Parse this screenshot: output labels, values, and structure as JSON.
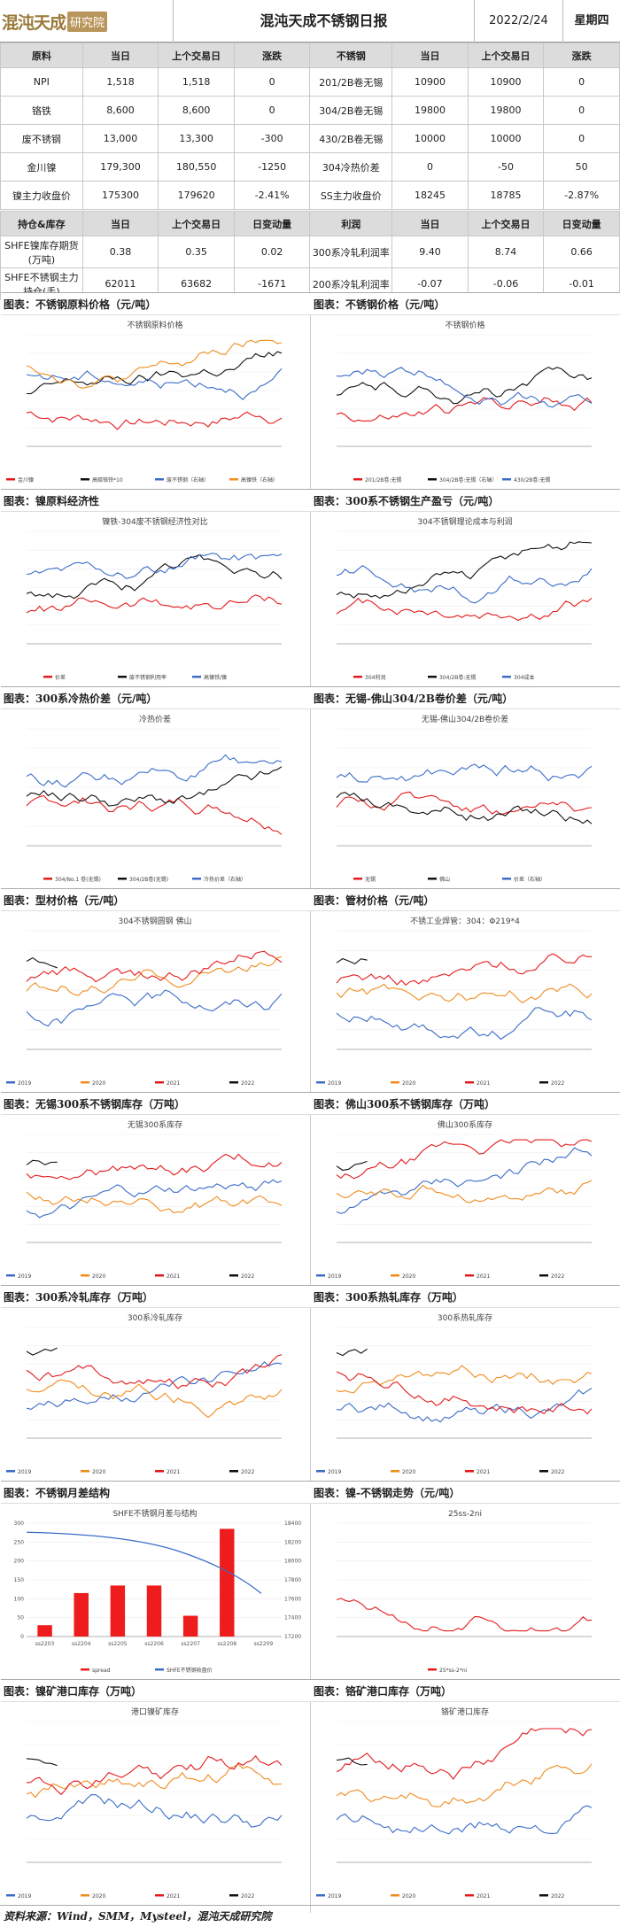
{
  "header": {
    "logo_main": "混沌天成",
    "logo_box": "研究院",
    "title": "混沌天成不锈钢日报",
    "date": "2022/2/24",
    "weekday": "星期四"
  },
  "table1": {
    "headers": [
      "原料",
      "当日",
      "上个交易日",
      "涨跌",
      "不锈钢",
      "当日",
      "上个交易日",
      "涨跌"
    ],
    "rows": [
      [
        "NPI",
        "1,518",
        "1,518",
        "0",
        "201/2B卷无锡",
        "10900",
        "10900",
        "0"
      ],
      [
        "铬铁",
        "8,600",
        "8,600",
        "0",
        "304/2B卷无锡",
        "19800",
        "19800",
        "0"
      ],
      [
        "废不锈钢",
        "13,000",
        "13,300",
        "-300",
        "430/2B卷无锡",
        "10000",
        "10000",
        "0"
      ],
      [
        "金川镍",
        "179,300",
        "180,550",
        "-1250",
        "304冷热价差",
        "0",
        "-50",
        "50"
      ],
      [
        "镍主力收盘价",
        "175300",
        "179620",
        "-2.41%",
        "SS主力收盘价",
        "18245",
        "18785",
        "-2.87%"
      ]
    ]
  },
  "table2": {
    "headers": [
      "持仓&库存",
      "当日",
      "上个交易日",
      "日变动量",
      "利润",
      "当日",
      "上个交易日",
      "日变动量"
    ],
    "rows": [
      [
        "SHFE镍库存期货(万吨)",
        "0.38",
        "0.35",
        "0.02",
        "300系冷轧利润率",
        "9.40",
        "8.74",
        "0.66"
      ],
      [
        "SHFE不锈钢主力持仓(手)",
        "62011",
        "63682",
        "-1671",
        "200系冷轧利润率",
        "-0.07",
        "-0.06",
        "-0.01"
      ]
    ]
  },
  "sections": [
    {
      "title": "图表：不锈钢原料价格（元/吨）",
      "chart_title": "不锈钢原料价格",
      "legend": [
        "金川镍",
        "高碳铬铁*10",
        "废不锈钢（右轴）",
        "高镍铁（右轴）"
      ]
    },
    {
      "title": "图表：不锈钢价格（元/吨）",
      "chart_title": "不锈钢价格",
      "legend": [
        "201/2B卷:无锡",
        "304/2B卷:无锡（右轴）",
        "430/2B卷:无锡"
      ]
    },
    {
      "title": "图表：镍原料经济性",
      "chart_title": "镍铁-304废不锈钢经济性对比",
      "legend": [
        "价差",
        "废不锈钢利用率",
        "高镍铁/镍"
      ]
    },
    {
      "title": "图表：300系不锈钢生产盈亏（元/吨）",
      "chart_title": "304不锈钢理论成本与利润",
      "legend": [
        "304利润",
        "304/2B卷:无锡",
        "304成本"
      ]
    },
    {
      "title": "图表：300系冷热价差（元/吨）",
      "chart_title": "冷热价差",
      "legend": [
        "304/No.1 卷(无锡)",
        "304/2B卷(无锡)",
        "冷热价差（右轴）"
      ]
    },
    {
      "title": "图表：无锡-佛山304/2B卷价差（元/吨）",
      "chart_title": "无锡-佛山304/2B卷价差",
      "legend": [
        "无锡",
        "佛山",
        "价差（右轴）"
      ]
    },
    {
      "title": "图表：型材价格（元/吨）",
      "chart_title": "304不锈钢圆钢 佛山",
      "legend": [
        "2019",
        "2020",
        "2021",
        "2022"
      ]
    },
    {
      "title": "图表：管材价格（元/吨）",
      "chart_title": "不锈工业焊管：304：Φ219*4",
      "legend": [
        "2019",
        "2020",
        "2021",
        "2022"
      ]
    },
    {
      "title": "图表：无锡300系不锈钢库存（万吨）",
      "chart_title": "无锡300系库存",
      "legend": [
        "2019",
        "2020",
        "2021",
        "2022"
      ]
    },
    {
      "title": "图表：佛山300系不锈钢库存（万吨）",
      "chart_title": "佛山300系库存",
      "legend": [
        "2019",
        "2020",
        "2021",
        "2022"
      ]
    },
    {
      "title": "图表：300系冷轧库存（万吨）",
      "chart_title": "300系冷轧库存",
      "legend": [
        "2019",
        "2020",
        "2021",
        "2022"
      ]
    },
    {
      "title": "图表：300系热轧库存（万吨）",
      "chart_title": "300系热轧库存",
      "legend": [
        "2019",
        "2020",
        "2021",
        "2022"
      ]
    },
    {
      "title": "图表：不锈钢月差结构",
      "chart_title": "SHFE不锈钢月差与结构",
      "legend": [
        "spread",
        "SHFE不锈钢收盘价"
      ]
    },
    {
      "title": "图表：镍-不锈钢走势（元/吨）",
      "chart_title": "25ss-2ni",
      "legend": [
        "25*ss-2*ni"
      ]
    },
    {
      "title": "图表：镍矿港口库存（万吨）",
      "chart_title": "港口镍矿库存",
      "legend": [
        "2019",
        "2020",
        "2021",
        "2022"
      ]
    },
    {
      "title": "图表：铬矿港口库存（万吨）",
      "chart_title": "铬矿港口库存",
      "legend": [
        "2019",
        "2020",
        "2021",
        "2022"
      ]
    }
  ],
  "spread_chart": {
    "categories": [
      "ss2203",
      "ss2204",
      "ss2205",
      "ss2206",
      "ss2207",
      "ss2208",
      "ss2209"
    ],
    "values": [
      30,
      115,
      135,
      135,
      55,
      285,
      0
    ],
    "left_ticks": [
      "300",
      "250",
      "200",
      "150",
      "100",
      "50",
      "0"
    ],
    "right_ticks": [
      "18400",
      "18200",
      "18000",
      "17800",
      "17600",
      "17400",
      "17200"
    ]
  },
  "footer": {
    "text": "资料来源：Wind，SMM，Mysteel，混沌天成研究院"
  },
  "colors": {
    "red": "#e41a1c",
    "blue": "#3a6cc8",
    "orange": "#f08c1e",
    "black": "#111",
    "gray": "#999"
  }
}
